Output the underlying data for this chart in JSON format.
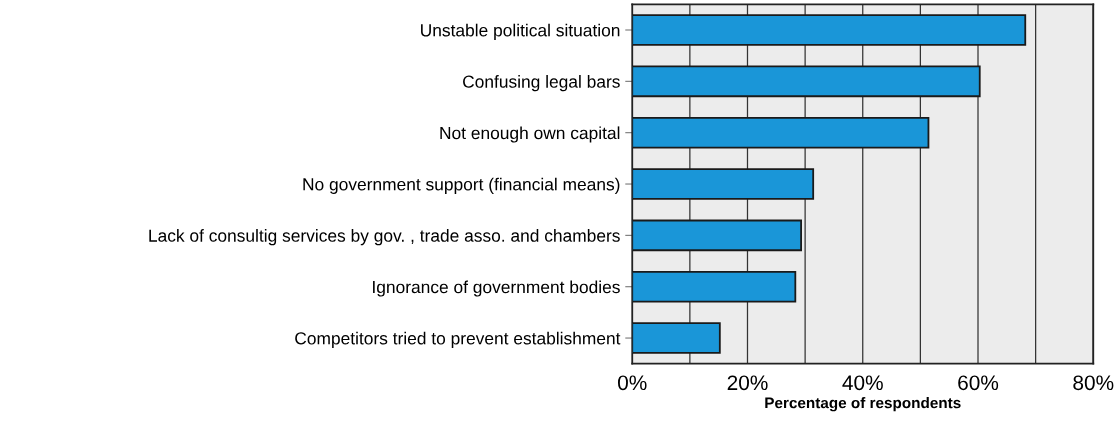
{
  "chart_data": {
    "type": "bar",
    "orientation": "horizontal",
    "xlabel": "Percentage of respondents",
    "categories": [
      "Unstable political situation",
      "Confusing legal bars",
      "Not enough own capital",
      "No government support (financial means)",
      "Lack of consultig services by gov. , trade asso. and chambers",
      "Ignorance of government bodies",
      "Competitors tried to prevent establishment"
    ],
    "values": [
      68.2,
      60.3,
      51.4,
      31.4,
      29.3,
      28.3,
      15.2
    ],
    "color": "#1a96d8",
    "xlim": [
      0,
      80
    ],
    "xticks": [
      {
        "value": 0,
        "label": "0%"
      },
      {
        "value": 10,
        "label": null
      },
      {
        "value": 20,
        "label": "20%"
      },
      {
        "value": 30,
        "label": null
      },
      {
        "value": 40,
        "label": "40%"
      },
      {
        "value": 50,
        "label": null
      },
      {
        "value": 60,
        "label": "60%"
      },
      {
        "value": 70,
        "label": null
      },
      {
        "value": 80,
        "label": "80%"
      }
    ],
    "grid": "x",
    "legend": false
  }
}
